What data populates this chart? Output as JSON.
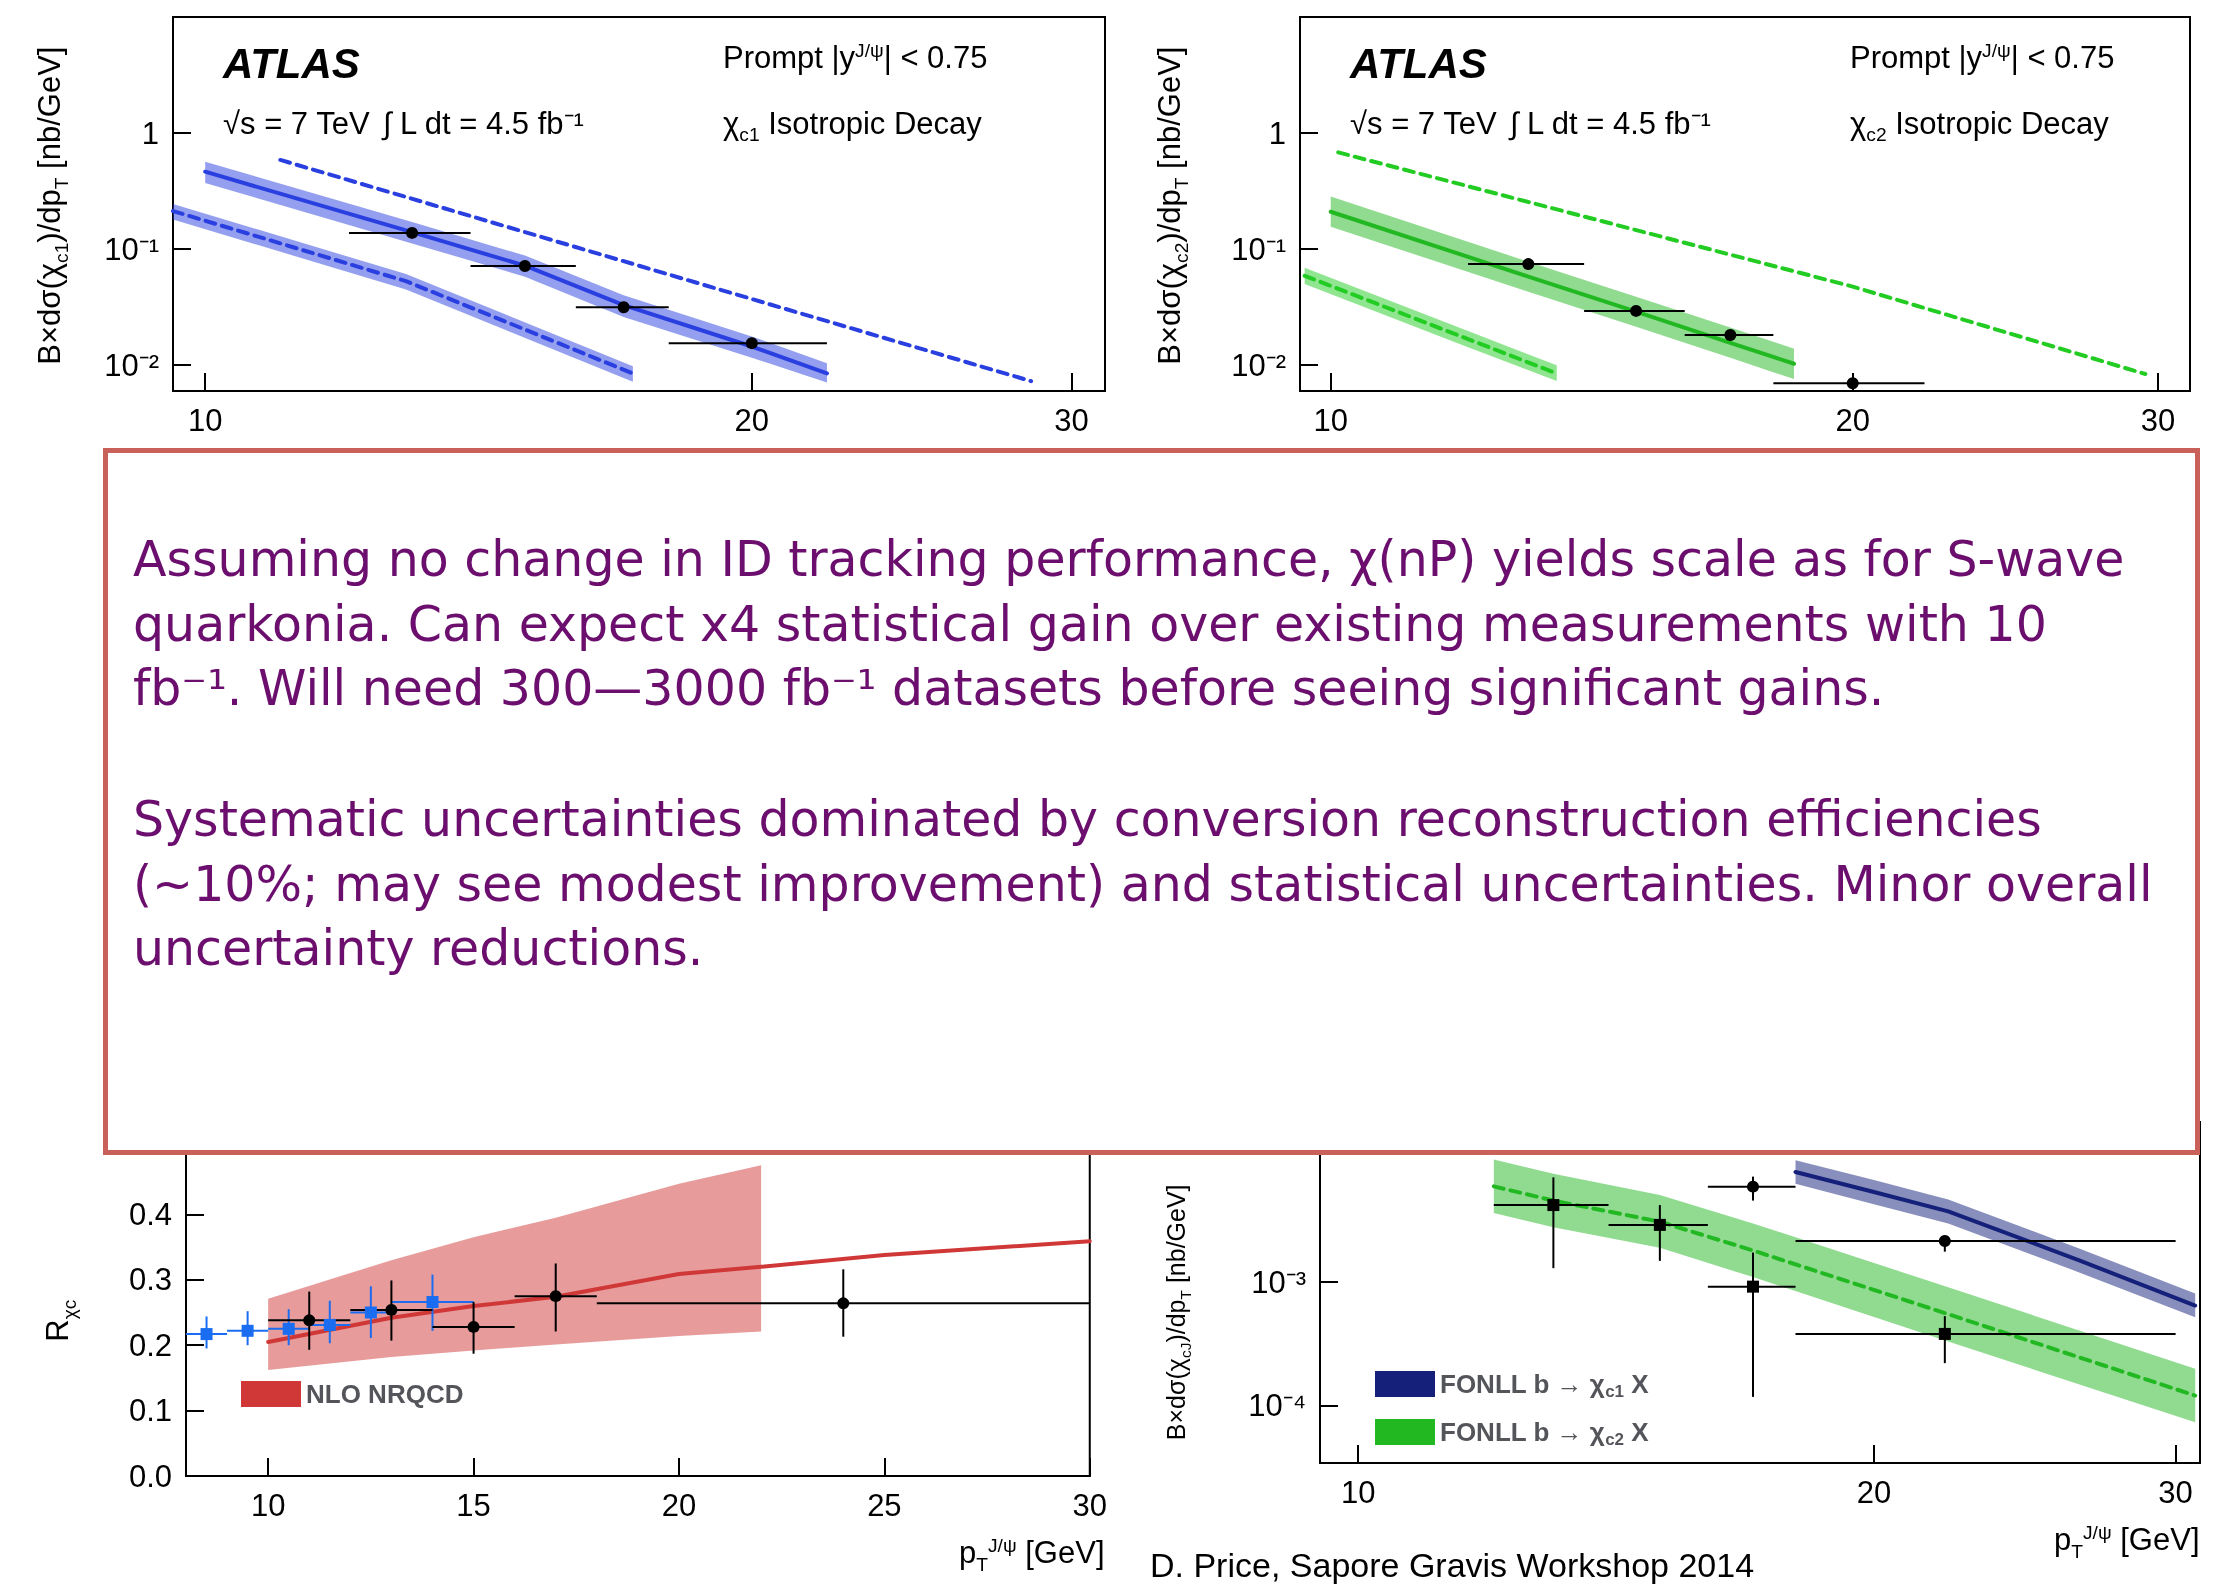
{
  "chart_data": [
    {
      "type": "line",
      "ylabel": "B×dσ(χ$_{c1}$)/dp$_{T}$ [nb/GeV]",
      "log": "xy",
      "xlim": [
        9.6,
        31.3
      ],
      "xticks": [
        10,
        20,
        30
      ],
      "ylim": [
        0.006,
        10
      ],
      "yticks": [
        {
          "value": 0.01,
          "label": "10⁻²"
        },
        {
          "value": 0.1,
          "label": "10⁻¹"
        },
        1
      ],
      "annotations": [
        "ATLAS",
        "√s = 7 TeV",
        "∫ L dt = 4.5 fb⁻¹",
        "Prompt  |y$^{J/ψ}$| < 0.75",
        "χ$_{c1}$ Isotropic Decay"
      ],
      "series": [
        {
          "type": "scatter",
          "marker": "circle",
          "color": "#000000",
          "x": [
            13,
            15,
            17,
            20
          ],
          "values": [
            0.138,
            0.0716,
            0.0316,
            0.0155
          ],
          "xerrors": [
            [
              12,
              14
            ],
            [
              14,
              16
            ],
            [
              16,
              18
            ],
            [
              18,
              22
            ]
          ]
        },
        {
          "color": "#2a3fe0",
          "x": [
            10,
            13,
            15,
            17,
            20,
            22
          ],
          "values": [
            0.465,
            0.14,
            0.072,
            0.033,
            0.0145,
            0.0085
          ],
          "lower": [
            0.372,
            0.112,
            0.058,
            0.026,
            0.0116,
            0.0071
          ],
          "upper": [
            0.567,
            0.171,
            0.088,
            0.04,
            0.0177,
            0.0104
          ]
        },
        {
          "color": "#2a3fe0",
          "line_style": "dashed",
          "x": [
            11,
            20,
            28.5
          ],
          "values": [
            0.587,
            0.0372,
            0.0073
          ]
        },
        {
          "color": "#2a3fe0",
          "line_style": "dashed",
          "x": [
            9.6,
            12.9,
            17.2
          ],
          "values": [
            0.213,
            0.053,
            0.0085
          ],
          "lower": [
            0.18,
            0.045,
            0.0072
          ],
          "upper": [
            0.245,
            0.061,
            0.0098
          ]
        }
      ]
    },
    {
      "type": "line",
      "ylabel": "B×dσ(χ$_{c2}$)/dp$_{T}$ [nb/GeV]",
      "log": "xy",
      "xlim": [
        9.6,
        31.3
      ],
      "xticks": [
        10,
        20,
        30
      ],
      "ylim": [
        0.006,
        10
      ],
      "yticks": [
        {
          "value": 0.01,
          "label": "10⁻²"
        },
        {
          "value": 0.1,
          "label": "10⁻¹"
        },
        1
      ],
      "annotations": [
        "ATLAS",
        "√s = 7 TeV",
        "∫ L dt = 4.5 fb⁻¹",
        "Prompt  |y$^{J/ψ}$| < 0.75",
        "χ$_{c2}$ Isotropic Decay"
      ],
      "series": [
        {
          "type": "scatter",
          "marker": "circle",
          "color": "#000000",
          "x": [
            13,
            15,
            17,
            20
          ],
          "values": [
            0.0744,
            0.0294,
            0.0182,
            0.007
          ],
          "xerrors": [
            [
              12,
              14
            ],
            [
              14,
              16
            ],
            [
              16,
              18
            ],
            [
              18,
              22
            ]
          ]
        },
        {
          "color": "#22b822",
          "x": [
            10,
            13,
            15,
            17,
            18.5
          ],
          "values": [
            0.21,
            0.058,
            0.029,
            0.0156,
            0.0103
          ],
          "lower": [
            0.156,
            0.043,
            0.0215,
            0.0116,
            0.0076
          ],
          "upper": [
            0.284,
            0.078,
            0.039,
            0.0211,
            0.0139
          ]
        },
        {
          "color": "#22cc22",
          "line_style": "dashed",
          "x": [
            10.1,
            20,
            29.5
          ],
          "values": [
            0.682,
            0.0476,
            0.0084
          ]
        },
        {
          "color": "#22cc22",
          "line_style": "dashed",
          "x": [
            9.66,
            12,
            13.5
          ],
          "values": [
            0.059,
            0.0168,
            0.0085
          ],
          "lower": [
            0.05,
            0.0143,
            0.0073
          ],
          "upper": [
            0.069,
            0.0197,
            0.01
          ]
        }
      ]
    },
    {
      "type": "line",
      "xlabel": "p$_{T}$$^{J/ψ}$ [GeV]",
      "ylabel": "R$_{χc}$",
      "xlim": [
        8,
        30
      ],
      "xticks": [
        10,
        15,
        20,
        25,
        30
      ],
      "ylim": [
        0,
        0.5
      ],
      "yticks": [
        {
          "value": 0,
          "label": "0.0"
        },
        0.1,
        0.2,
        0.3,
        0.4
      ],
      "legend": "bottom left",
      "series": [
        {
          "name": "NLO NRQCD",
          "color": "#d03838",
          "x": [
            10,
            13,
            15,
            17,
            20,
            22,
            25,
            30
          ],
          "values": [
            0.205,
            0.242,
            0.26,
            0.274,
            0.309,
            0.32,
            0.338,
            0.359
          ],
          "lower": [
            0.162,
            0.182,
            0.192,
            0.201,
            0.214,
            0.221,
            null,
            null
          ],
          "upper": [
            0.271,
            0.33,
            0.365,
            0.395,
            0.447,
            0.475,
            null,
            null
          ]
        },
        {
          "type": "scatter",
          "marker": "square",
          "color": "#1a6cf0",
          "x": [
            8.5,
            9.5,
            10.5,
            11.5,
            12.5,
            14
          ],
          "values": [
            0.217,
            0.222,
            0.225,
            0.231,
            0.25,
            0.266
          ],
          "xerrors": [
            [
              8,
              9
            ],
            [
              9,
              10
            ],
            [
              10,
              11
            ],
            [
              11,
              12
            ],
            [
              12,
              13
            ],
            [
              13,
              15
            ]
          ],
          "errors": [
            [
              0.195,
              0.244
            ],
            [
              0.2,
              0.252
            ],
            [
              0.2,
              0.255
            ],
            [
              0.203,
              0.268
            ],
            [
              0.211,
              0.29
            ],
            [
              0.222,
              0.308
            ]
          ]
        },
        {
          "type": "scatter",
          "marker": "circle",
          "color": "#000000",
          "x": [
            11,
            13,
            15,
            17,
            24
          ],
          "values": [
            0.238,
            0.254,
            0.228,
            0.275,
            0.264
          ],
          "xerrors": [
            [
              10,
              12
            ],
            [
              12,
              14
            ],
            [
              14,
              16
            ],
            [
              16,
              18
            ],
            [
              18,
              30
            ]
          ],
          "errors": [
            [
              0.193,
              0.282
            ],
            [
              0.207,
              0.299
            ],
            [
              0.187,
              0.266
            ],
            [
              0.221,
              0.325
            ],
            [
              0.213,
              0.316
            ]
          ]
        }
      ]
    },
    {
      "type": "line",
      "xlabel": "p$_{T}$$^{J/ψ}$ [GeV]",
      "ylabel": "B×dσ(χ$_{cJ}$)/dp$_{T}$ [nb/GeV]",
      "log": "xy",
      "xlim": [
        9.5,
        31
      ],
      "xticks": [
        10,
        20,
        30
      ],
      "ylim": [
        3.4e-05,
        0.02
      ],
      "yticks": [
        {
          "value": 0.0001,
          "label": "10⁻⁴"
        },
        {
          "value": 0.001,
          "label": "10⁻³"
        }
      ],
      "legend": "bottom left",
      "annotations": [
        "D. Price, Sapore Gravis Workshop 2014"
      ],
      "series": [
        {
          "name": "FONLL b → χ$_{c1}$ X",
          "color": "#14207a",
          "x": [
            18,
            20,
            22.1,
            26.4,
            30.8
          ],
          "values": [
            0.00785,
            0.0054,
            0.00376,
            0.00149,
            0.000646
          ],
          "lower": [
            0.0063,
            0.0043,
            0.003,
            0.00119,
            0.00052
          ],
          "upper": [
            0.0098,
            0.00675,
            0.0047,
            0.00186,
            0.00081
          ]
        },
        {
          "name": "FONLL b → χ$_{c2}$ X",
          "color": "#22b822",
          "line_style": "dashed",
          "x": [
            12,
            13,
            15,
            17,
            22.1,
            30.8
          ],
          "values": [
            0.006,
            0.0046,
            0.0031,
            0.00181,
            0.00055,
            0.00012
          ],
          "lower": [
            0.00364,
            0.0028,
            0.0019,
            0.0011,
            0.00033,
            7.27e-05
          ],
          "upper": [
            0.0099,
            0.0076,
            0.0051,
            0.003,
            0.00091,
            0.000198
          ]
        },
        {
          "type": "scatter",
          "marker": "circle",
          "color": "#000000",
          "x": [
            17,
            22
          ],
          "values": [
            0.00597,
            0.00216
          ],
          "xerrors": [
            [
              16,
              18
            ],
            [
              18,
              30
            ]
          ],
          "errors": [
            [
              0.0046,
              0.0072
            ],
            [
              0.00177,
              0.0024
            ]
          ]
        },
        {
          "type": "scatter",
          "marker": "square",
          "color": "#000000",
          "x": [
            13,
            15,
            17,
            22
          ],
          "values": [
            0.00423,
            0.00292,
            0.00092,
            0.00038
          ],
          "xerrors": [
            [
              12,
              14
            ],
            [
              14,
              16
            ],
            [
              16,
              18
            ],
            [
              18,
              30
            ]
          ],
          "errors": [
            [
              0.0013,
              0.0071
            ],
            [
              0.00149,
              0.00423
            ],
            [
              0.000117,
              0.00174
            ],
            [
              0.00022,
              0.00053
            ]
          ]
        }
      ]
    },
    {
      "type": "other",
      "annotations": [
        "Assuming no change in ID tracking performance, χ(nP) yields scale as for S-wave quarkonia. Can expect x4 statistical gain over existing measurements with 10 fb⁻¹. Will need 300—3000 fb⁻¹ datasets before seeing significant gains.",
        "Systematic uncertainties dominated by conversion reconstruction efficiencies (~10%; may see modest improvement) and statistical uncertainties. Minor overall uncertainty reductions."
      ]
    }
  ]
}
